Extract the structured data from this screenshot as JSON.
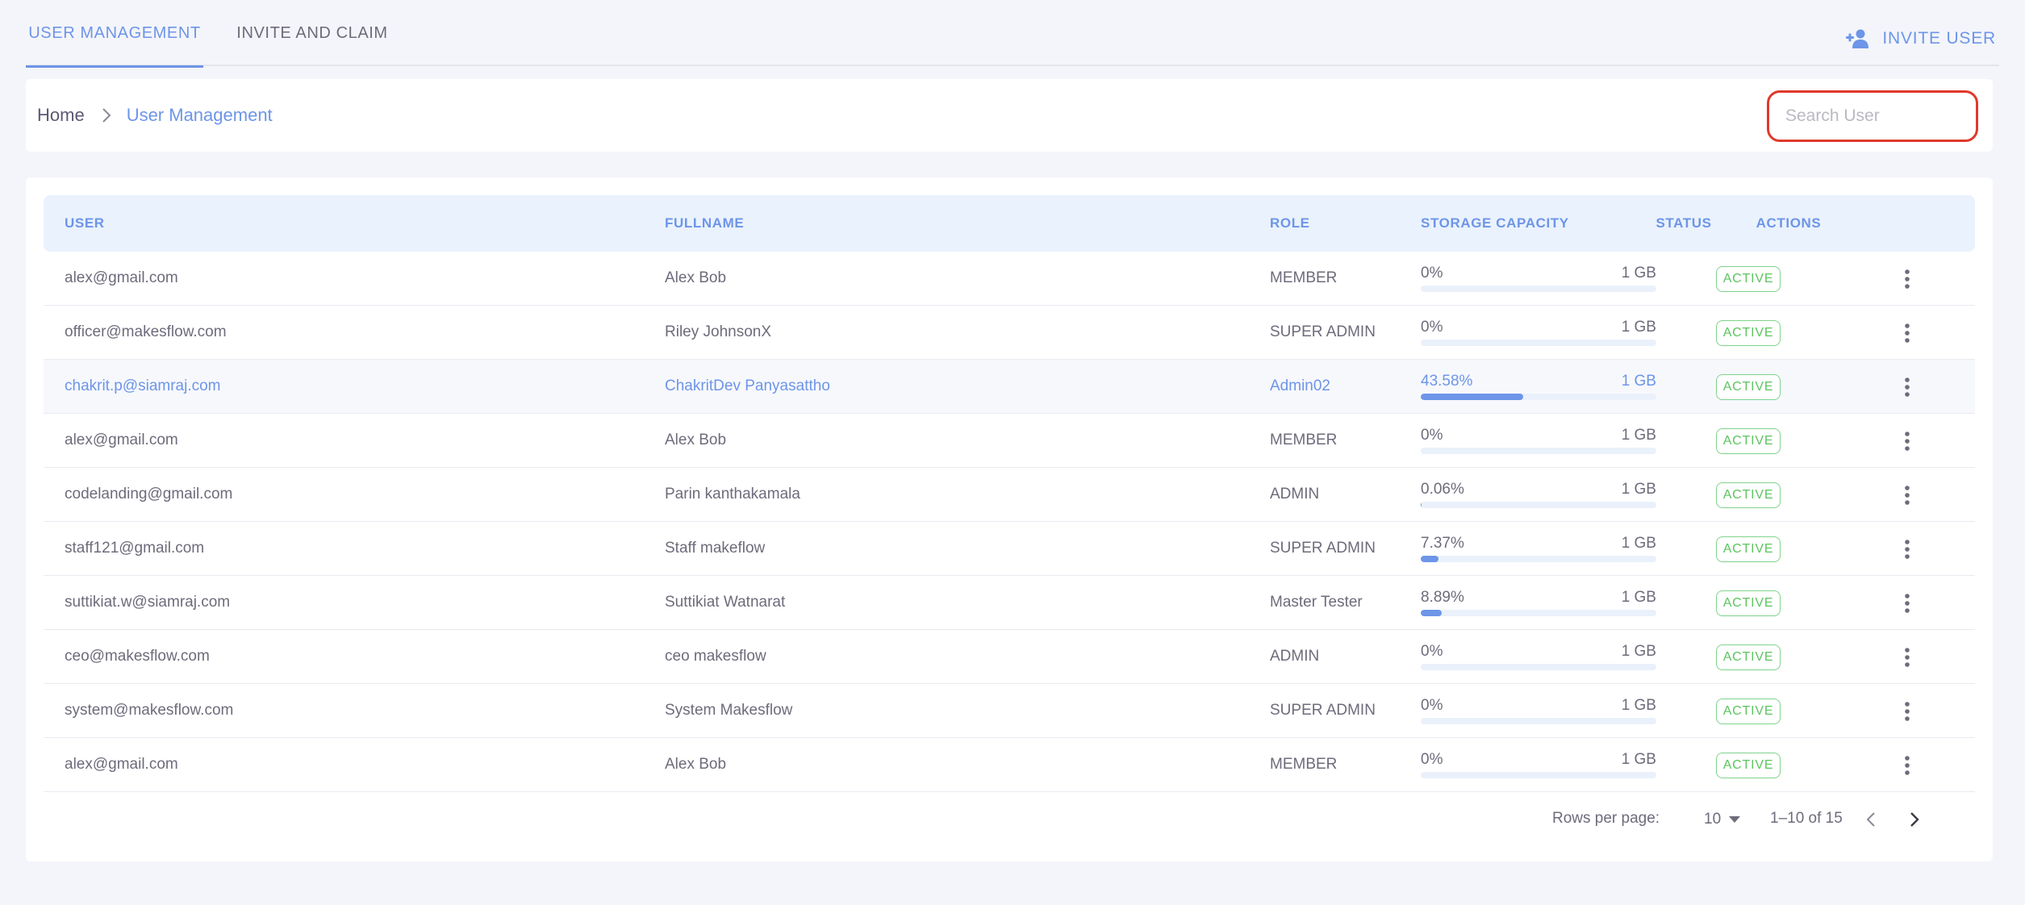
{
  "tabs": [
    {
      "label": "USER MANAGEMENT",
      "active": true
    },
    {
      "label": "INVITE AND CLAIM",
      "active": false
    }
  ],
  "invite_button": {
    "label": "INVITE USER",
    "icon": "user-plus-icon"
  },
  "breadcrumb": {
    "home": "Home",
    "current": "User Management"
  },
  "search": {
    "placeholder": "Search User",
    "value": ""
  },
  "table": {
    "headers": {
      "user": "USER",
      "fullname": "FULLNAME",
      "role": "ROLE",
      "storage": "STORAGE CAPACITY",
      "status": "STATUS",
      "actions": "ACTIONS"
    },
    "rows": [
      {
        "user": "alex@gmail.com",
        "fullname": "Alex Bob",
        "role": "MEMBER",
        "storage_pct": "0%",
        "storage_fraction": 0,
        "capacity": "1 GB",
        "status": "ACTIVE"
      },
      {
        "user": "officer@makesflow.com",
        "fullname": "Riley JohnsonX",
        "role": "SUPER ADMIN",
        "storage_pct": "0%",
        "storage_fraction": 0,
        "capacity": "1 GB",
        "status": "ACTIVE"
      },
      {
        "user": "chakrit.p@siamraj.com",
        "fullname": "ChakritDev Panyasattho",
        "role": "Admin02",
        "storage_pct": "43.58%",
        "storage_fraction": 0.4358,
        "capacity": "1 GB",
        "status": "ACTIVE",
        "highlight": true
      },
      {
        "user": "alex@gmail.com",
        "fullname": "Alex Bob",
        "role": "MEMBER",
        "storage_pct": "0%",
        "storage_fraction": 0,
        "capacity": "1 GB",
        "status": "ACTIVE"
      },
      {
        "user": "codelanding@gmail.com",
        "fullname": "Parin kanthakamala",
        "role": "ADMIN",
        "storage_pct": "0.06%",
        "storage_fraction": 0.0006,
        "capacity": "1 GB",
        "status": "ACTIVE"
      },
      {
        "user": "staff121@gmail.com",
        "fullname": "Staff makeflow",
        "role": "SUPER ADMIN",
        "storage_pct": "7.37%",
        "storage_fraction": 0.0737,
        "capacity": "1 GB",
        "status": "ACTIVE"
      },
      {
        "user": "suttikiat.w@siamraj.com",
        "fullname": "Suttikiat Watnarat",
        "role": "Master Tester",
        "storage_pct": "8.89%",
        "storage_fraction": 0.0889,
        "capacity": "1 GB",
        "status": "ACTIVE"
      },
      {
        "user": "ceo@makesflow.com",
        "fullname": "ceo makesflow",
        "role": "ADMIN",
        "storage_pct": "0%",
        "storage_fraction": 0,
        "capacity": "1 GB",
        "status": "ACTIVE"
      },
      {
        "user": "system@makesflow.com",
        "fullname": "System Makesflow",
        "role": "SUPER ADMIN",
        "storage_pct": "0%",
        "storage_fraction": 0,
        "capacity": "1 GB",
        "status": "ACTIVE"
      },
      {
        "user": "alex@gmail.com",
        "fullname": "Alex Bob",
        "role": "MEMBER",
        "storage_pct": "0%",
        "storage_fraction": 0,
        "capacity": "1 GB",
        "status": "ACTIVE"
      }
    ]
  },
  "pagination": {
    "rows_per_page_label": "Rows per page:",
    "rows_per_page": "10",
    "range": "1–10 of 15"
  },
  "colors": {
    "accent": "#6d95e8",
    "status_active": "#5cc45f",
    "search_highlight": "#e0392b"
  }
}
